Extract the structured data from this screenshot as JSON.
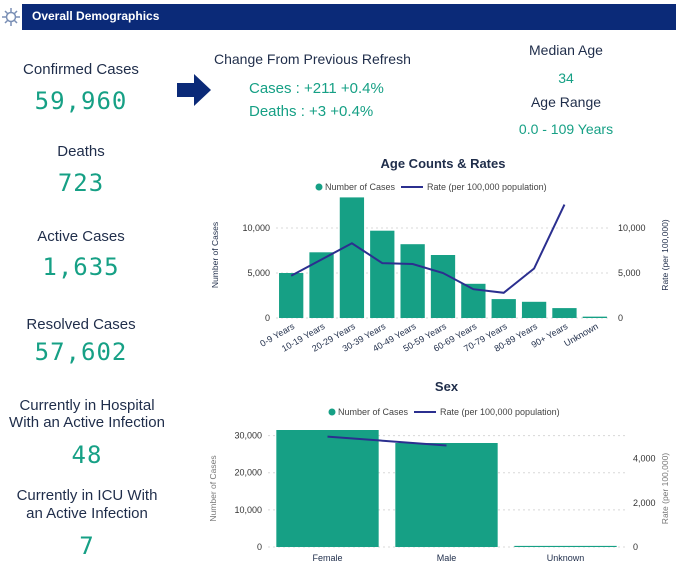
{
  "header": {
    "title": "Overall Demographics"
  },
  "kpis": [
    {
      "label": "Confirmed Cases",
      "value": "59,960"
    },
    {
      "label": "Deaths",
      "value": "723"
    },
    {
      "label": "Active Cases",
      "value": "1,635"
    },
    {
      "label": "Resolved Cases",
      "value": "57,602"
    },
    {
      "label_line1": "Currently in Hospital",
      "label_line2": "With an Active Infection",
      "value": "48"
    },
    {
      "label_line1": "Currently in ICU With",
      "label_line2": "an Active Infection",
      "value": "7"
    }
  ],
  "change": {
    "title": "Change From Previous Refresh",
    "cases": "Cases : +211 +0.4%",
    "deaths": "Deaths : +3 +0.4%"
  },
  "median": {
    "label": "Median Age",
    "value": "34",
    "range_label": "Age Range",
    "range_value": "0.0 - 109 Years"
  },
  "colors": {
    "bar": "#16a085",
    "line": "#2b2f8f",
    "header": "#0b2a78",
    "text": "#1f2d4a"
  },
  "chart_data": [
    {
      "type": "bar",
      "title": "Age Counts & Rates",
      "legend": {
        "bar": "Number of Cases",
        "line": "Rate (per 100,000 population)"
      },
      "ylabel": "Number of Cases",
      "y2label": "Rate (per 100,000)",
      "categories": [
        "0-9 Years",
        "10-19 Years",
        "20-29 Years",
        "30-39 Years",
        "40-49 Years",
        "50-59 Years",
        "60-69 Years",
        "70-79 Years",
        "80-89 Years",
        "90+ Years",
        "Unknown"
      ],
      "series": [
        {
          "name": "Number of Cases",
          "axis": "left",
          "values": [
            5000,
            7300,
            13400,
            9700,
            8200,
            7000,
            3800,
            2100,
            1800,
            1100,
            150
          ]
        },
        {
          "name": "Rate (per 100,000 population)",
          "axis": "right",
          "values": [
            4700,
            6500,
            8300,
            6100,
            6000,
            5000,
            3200,
            2800,
            5500,
            12600,
            null
          ]
        }
      ],
      "ylim": [
        0,
        14000
      ],
      "y2lim": [
        0,
        14000
      ],
      "yticks": [
        0,
        5000,
        10000
      ],
      "yticklabels": [
        "0",
        "5,000",
        "10,000"
      ],
      "y2ticks": [
        0,
        5000,
        10000
      ],
      "y2ticklabels": [
        "0",
        "5,000",
        "10,000"
      ]
    },
    {
      "type": "bar",
      "title": "Sex",
      "legend": {
        "bar": "Number of Cases",
        "line": "Rate (per 100,000 population)"
      },
      "ylabel": "Number of Cases",
      "y2label": "Rate (per 100,000)",
      "categories": [
        "Female",
        "Male",
        "Unknown"
      ],
      "series": [
        {
          "name": "Number of Cases",
          "axis": "left",
          "values": [
            31500,
            28000,
            300
          ]
        },
        {
          "name": "Rate (per 100,000 population)",
          "axis": "right",
          "values": [
            5000,
            4600,
            null
          ]
        }
      ],
      "ylim": [
        0,
        31500
      ],
      "y2lim": [
        0,
        5300
      ],
      "yticks": [
        0,
        10000,
        20000,
        30000
      ],
      "yticklabels": [
        "0",
        "10,000",
        "20,000",
        "30,000"
      ],
      "y2ticks": [
        0,
        2000,
        4000
      ],
      "y2ticklabels": [
        "0",
        "2,000",
        "4,000"
      ]
    }
  ]
}
